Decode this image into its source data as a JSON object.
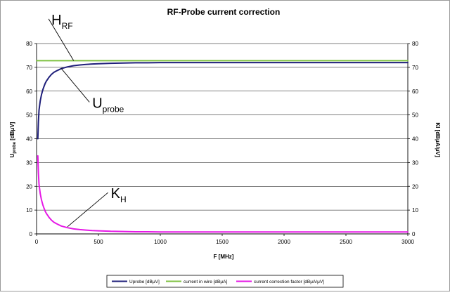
{
  "chart_data": {
    "type": "line",
    "title": "RF-Probe current correction",
    "xlabel": "F [MHz]",
    "ylabel_main": "U",
    "ylabel_sub": "probe",
    "ylabel_unit": "[dBμV]",
    "y2label": "KI [dBμA/μV]",
    "xlim": [
      0,
      3000
    ],
    "ylim": [
      0,
      80
    ],
    "y2lim": [
      0,
      80
    ],
    "x_ticks": [
      0,
      500,
      1000,
      1500,
      2000,
      2500,
      3000
    ],
    "y_ticks": [
      0,
      10,
      20,
      30,
      40,
      50,
      60,
      70,
      80
    ],
    "grid": "horizontal",
    "legend_position": "bottom",
    "series": [
      {
        "name": "Uprobe [dBμV]",
        "color": "#1f1f7a",
        "x": [
          10,
          15,
          20,
          30,
          40,
          50,
          60,
          70,
          80,
          90,
          100,
          120,
          140,
          160,
          180,
          200,
          250,
          300,
          350,
          400,
          450,
          500,
          600,
          700,
          800,
          900,
          1000,
          1500,
          2000,
          2500,
          3000
        ],
        "y": [
          40,
          47,
          52,
          56,
          58.5,
          60.5,
          62,
          63.3,
          64.3,
          65,
          65.8,
          67,
          67.9,
          68.5,
          69,
          69.5,
          70.2,
          70.7,
          71,
          71.2,
          71.4,
          71.5,
          71.7,
          71.8,
          71.9,
          71.9,
          72,
          72,
          72,
          72,
          72
        ]
      },
      {
        "name": "current in wire [dBμA]",
        "color": "#7fc241",
        "x": [
          0,
          500,
          1000,
          1500,
          2000,
          2500,
          3000
        ],
        "y": [
          72.8,
          72.8,
          72.8,
          72.8,
          72.8,
          72.8,
          72.8
        ]
      },
      {
        "name": "current correction factor [dBμA/μV]",
        "color": "#e619e6",
        "x": [
          10,
          15,
          20,
          30,
          40,
          50,
          60,
          70,
          80,
          90,
          100,
          120,
          140,
          160,
          180,
          200,
          250,
          300,
          350,
          400,
          450,
          500,
          600,
          700,
          800,
          900,
          1000,
          1500,
          2000,
          2500,
          3000
        ],
        "y": [
          32.8,
          25.8,
          20.8,
          16.8,
          14.3,
          12.3,
          10.8,
          9.5,
          8.5,
          7.8,
          7,
          5.8,
          4.9,
          4.3,
          3.8,
          3.3,
          2.6,
          2.1,
          1.8,
          1.6,
          1.4,
          1.3,
          1.1,
          1,
          0.9,
          0.9,
          0.8,
          0.8,
          0.8,
          0.8,
          0.8
        ]
      }
    ],
    "annotations": [
      {
        "main": "H",
        "sub": "RF",
        "target": [
          300,
          72.8
        ],
        "text_at": [
          120,
          88
        ]
      },
      {
        "main": "U",
        "sub": "probe",
        "target": [
          200,
          69.5
        ],
        "text_at": [
          450,
          53
        ]
      },
      {
        "main": "K",
        "sub": "H",
        "target": [
          250,
          3
        ],
        "text_at": [
          600,
          15
        ]
      }
    ]
  }
}
